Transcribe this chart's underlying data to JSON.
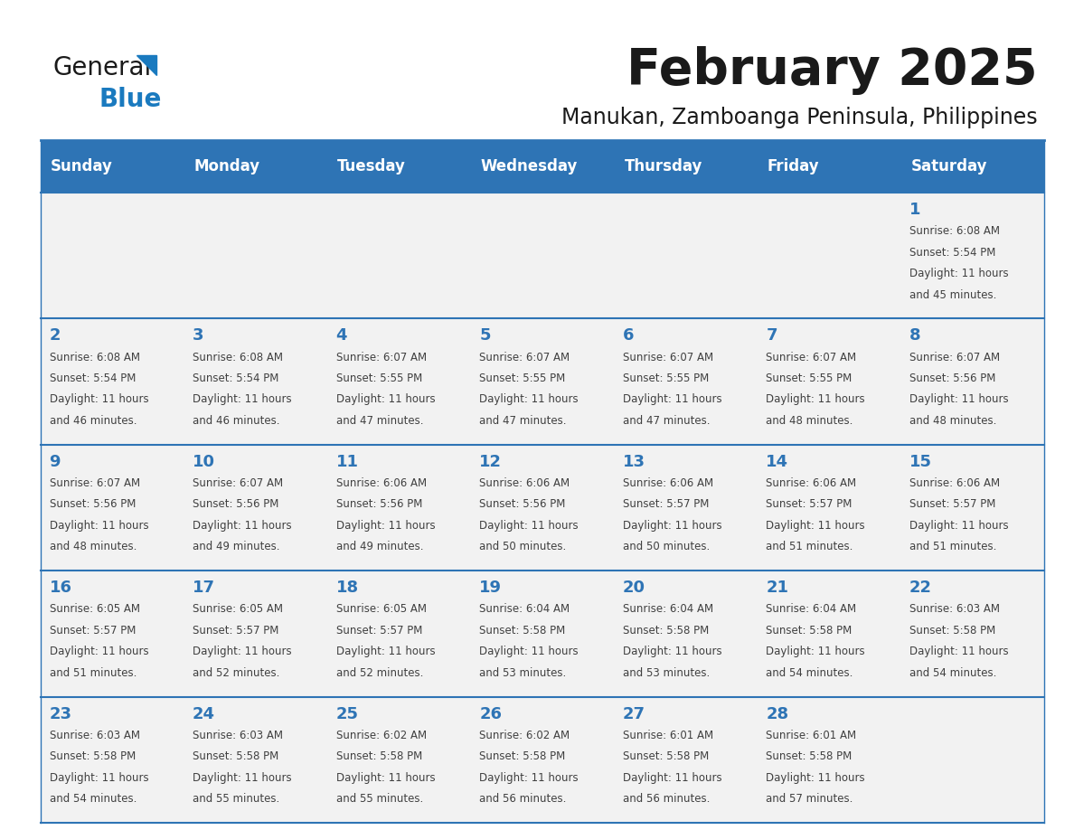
{
  "title": "February 2025",
  "subtitle": "Manukan, Zamboanga Peninsula, Philippines",
  "header_bg": "#2E74B5",
  "header_text_color": "#FFFFFF",
  "cell_bg": "#F2F2F2",
  "day_number_color": "#2E74B5",
  "text_color": "#404040",
  "days_of_week": [
    "Sunday",
    "Monday",
    "Tuesday",
    "Wednesday",
    "Thursday",
    "Friday",
    "Saturday"
  ],
  "weeks": [
    [
      {
        "day": null,
        "sunrise": null,
        "sunset": null,
        "daylight": null
      },
      {
        "day": null,
        "sunrise": null,
        "sunset": null,
        "daylight": null
      },
      {
        "day": null,
        "sunrise": null,
        "sunset": null,
        "daylight": null
      },
      {
        "day": null,
        "sunrise": null,
        "sunset": null,
        "daylight": null
      },
      {
        "day": null,
        "sunrise": null,
        "sunset": null,
        "daylight": null
      },
      {
        "day": null,
        "sunrise": null,
        "sunset": null,
        "daylight": null
      },
      {
        "day": 1,
        "sunrise": "6:08 AM",
        "sunset": "5:54 PM",
        "daylight": "11 hours and 45 minutes."
      }
    ],
    [
      {
        "day": 2,
        "sunrise": "6:08 AM",
        "sunset": "5:54 PM",
        "daylight": "11 hours and 46 minutes."
      },
      {
        "day": 3,
        "sunrise": "6:08 AM",
        "sunset": "5:54 PM",
        "daylight": "11 hours and 46 minutes."
      },
      {
        "day": 4,
        "sunrise": "6:07 AM",
        "sunset": "5:55 PM",
        "daylight": "11 hours and 47 minutes."
      },
      {
        "day": 5,
        "sunrise": "6:07 AM",
        "sunset": "5:55 PM",
        "daylight": "11 hours and 47 minutes."
      },
      {
        "day": 6,
        "sunrise": "6:07 AM",
        "sunset": "5:55 PM",
        "daylight": "11 hours and 47 minutes."
      },
      {
        "day": 7,
        "sunrise": "6:07 AM",
        "sunset": "5:55 PM",
        "daylight": "11 hours and 48 minutes."
      },
      {
        "day": 8,
        "sunrise": "6:07 AM",
        "sunset": "5:56 PM",
        "daylight": "11 hours and 48 minutes."
      }
    ],
    [
      {
        "day": 9,
        "sunrise": "6:07 AM",
        "sunset": "5:56 PM",
        "daylight": "11 hours and 48 minutes."
      },
      {
        "day": 10,
        "sunrise": "6:07 AM",
        "sunset": "5:56 PM",
        "daylight": "11 hours and 49 minutes."
      },
      {
        "day": 11,
        "sunrise": "6:06 AM",
        "sunset": "5:56 PM",
        "daylight": "11 hours and 49 minutes."
      },
      {
        "day": 12,
        "sunrise": "6:06 AM",
        "sunset": "5:56 PM",
        "daylight": "11 hours and 50 minutes."
      },
      {
        "day": 13,
        "sunrise": "6:06 AM",
        "sunset": "5:57 PM",
        "daylight": "11 hours and 50 minutes."
      },
      {
        "day": 14,
        "sunrise": "6:06 AM",
        "sunset": "5:57 PM",
        "daylight": "11 hours and 51 minutes."
      },
      {
        "day": 15,
        "sunrise": "6:06 AM",
        "sunset": "5:57 PM",
        "daylight": "11 hours and 51 minutes."
      }
    ],
    [
      {
        "day": 16,
        "sunrise": "6:05 AM",
        "sunset": "5:57 PM",
        "daylight": "11 hours and 51 minutes."
      },
      {
        "day": 17,
        "sunrise": "6:05 AM",
        "sunset": "5:57 PM",
        "daylight": "11 hours and 52 minutes."
      },
      {
        "day": 18,
        "sunrise": "6:05 AM",
        "sunset": "5:57 PM",
        "daylight": "11 hours and 52 minutes."
      },
      {
        "day": 19,
        "sunrise": "6:04 AM",
        "sunset": "5:58 PM",
        "daylight": "11 hours and 53 minutes."
      },
      {
        "day": 20,
        "sunrise": "6:04 AM",
        "sunset": "5:58 PM",
        "daylight": "11 hours and 53 minutes."
      },
      {
        "day": 21,
        "sunrise": "6:04 AM",
        "sunset": "5:58 PM",
        "daylight": "11 hours and 54 minutes."
      },
      {
        "day": 22,
        "sunrise": "6:03 AM",
        "sunset": "5:58 PM",
        "daylight": "11 hours and 54 minutes."
      }
    ],
    [
      {
        "day": 23,
        "sunrise": "6:03 AM",
        "sunset": "5:58 PM",
        "daylight": "11 hours and 54 minutes."
      },
      {
        "day": 24,
        "sunrise": "6:03 AM",
        "sunset": "5:58 PM",
        "daylight": "11 hours and 55 minutes."
      },
      {
        "day": 25,
        "sunrise": "6:02 AM",
        "sunset": "5:58 PM",
        "daylight": "11 hours and 55 minutes."
      },
      {
        "day": 26,
        "sunrise": "6:02 AM",
        "sunset": "5:58 PM",
        "daylight": "11 hours and 56 minutes."
      },
      {
        "day": 27,
        "sunrise": "6:01 AM",
        "sunset": "5:58 PM",
        "daylight": "11 hours and 56 minutes."
      },
      {
        "day": 28,
        "sunrise": "6:01 AM",
        "sunset": "5:58 PM",
        "daylight": "11 hours and 57 minutes."
      },
      {
        "day": null,
        "sunrise": null,
        "sunset": null,
        "daylight": null
      }
    ]
  ],
  "logo_color_general": "#1a1a1a",
  "logo_color_blue": "#1a7abf",
  "logo_triangle_color": "#1a7abf",
  "title_fontsize": 40,
  "subtitle_fontsize": 17,
  "header_fontsize": 12,
  "day_num_fontsize": 13,
  "cell_text_fontsize": 8.5
}
